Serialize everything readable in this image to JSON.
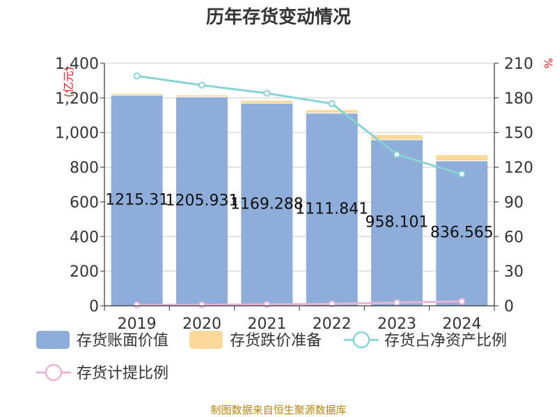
{
  "chart_data": {
    "type": "bar",
    "title": "历年存货变动情况",
    "categories": [
      "2019",
      "2020",
      "2021",
      "2022",
      "2023",
      "2024"
    ],
    "y_left": {
      "unit": "(亿元)",
      "range": [
        0,
        1400
      ],
      "ticks": [
        "0",
        "200",
        "400",
        "600",
        "800",
        "1,000",
        "1,200",
        "1,400"
      ]
    },
    "y_right": {
      "unit": "%",
      "range": [
        0,
        210
      ],
      "ticks": [
        "0",
        "30",
        "60",
        "90",
        "120",
        "150",
        "180",
        "210"
      ]
    },
    "series": [
      {
        "name": "存货账面价值",
        "type": "bar",
        "stack": "inv",
        "color": "#8eadd9",
        "values": [
          1215.31,
          1205.931,
          1169.288,
          1111.841,
          958.101,
          836.565
        ],
        "labels": [
          "1215.31",
          "1205.931",
          "1169.288",
          "1111.841",
          "958.101",
          "836.565"
        ]
      },
      {
        "name": "存货跌价准备",
        "type": "bar",
        "stack": "inv",
        "color": "#fcd99a",
        "values": [
          8,
          9,
          14,
          18,
          28,
          33
        ]
      },
      {
        "name": "存货占净资产比例",
        "type": "line",
        "axis": "right",
        "color": "#88d4d4",
        "values": [
          199,
          191,
          184,
          175,
          131,
          114
        ]
      },
      {
        "name": "存货计提比例",
        "type": "line",
        "axis": "right",
        "color": "#e8b4d8",
        "values": [
          0.7,
          0.8,
          1.2,
          1.6,
          2.8,
          3.8
        ]
      }
    ],
    "grid": true,
    "legend": "bottom"
  },
  "footer": {
    "source": "制图数据来自恒生聚源数据库"
  }
}
